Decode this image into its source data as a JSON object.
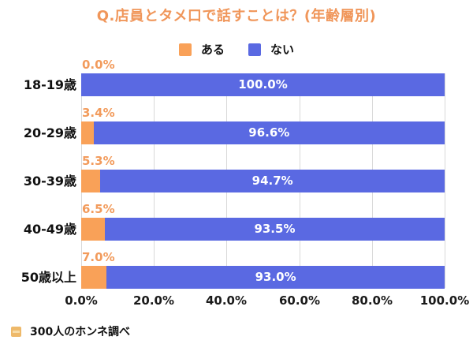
{
  "title": "Q.店員とタメ口で話すことは？(年齢層別)",
  "chart_data": {
    "type": "bar",
    "orientation": "horizontal",
    "stacked": true,
    "title": "Q.店員とタメ口で話すことは？(年齢層別)",
    "categories": [
      "18-19歳",
      "20-29歳",
      "30-39歳",
      "40-49歳",
      "50歳以上"
    ],
    "series": [
      {
        "name": "ある",
        "color": "#F9A158",
        "values": [
          0.0,
          3.4,
          5.3,
          6.5,
          7.0
        ],
        "labels": [
          "0.0%",
          "3.4%",
          "5.3%",
          "6.5%",
          "7.0%"
        ]
      },
      {
        "name": "ない",
        "color": "#5A69E2",
        "values": [
          100.0,
          96.6,
          94.7,
          93.5,
          93.0
        ],
        "labels": [
          "100.0%",
          "96.6%",
          "94.7%",
          "93.5%",
          "93.0%"
        ]
      }
    ],
    "xlim": [
      0,
      100
    ],
    "x_ticks": [
      "0.0%",
      "20.0%",
      "40.0%",
      "60.0%",
      "80.0%",
      "100.0%"
    ],
    "grid": true,
    "legend_position": "top"
  },
  "footer": {
    "source": "300人のホンネ調べ"
  },
  "colors": {
    "title_text": "#F0965A",
    "value_label_text": "#F29B5C",
    "bar_label_text": "#FFFFFF",
    "axis_text": "#1A1A1A",
    "gridline": "#D9D9D9",
    "background": "#FFFFFF"
  }
}
